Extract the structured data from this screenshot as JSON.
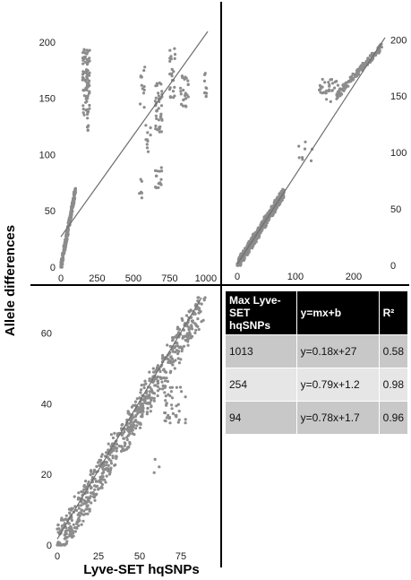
{
  "figure": {
    "ylabel": "Allele differences",
    "xlabel": "Lyve-SET hqSNPs"
  },
  "table": {
    "headers": [
      "Max Lyve-SET hqSNPs",
      "y=mx+b",
      "R²"
    ],
    "rows": [
      [
        "1013",
        "y=0.18x+27",
        "0.58"
      ],
      [
        "254",
        "y=0.79x+1.2",
        "0.98"
      ],
      [
        "94",
        "y=0.78x+1.7",
        "0.96"
      ]
    ]
  },
  "colors": {
    "points": "#8c8c8c",
    "line": "#6e6e6e",
    "divider": "#000000"
  },
  "chart_data": [
    {
      "type": "scatter",
      "panel": "top-left",
      "xlim": [
        0,
        1013
      ],
      "ylim": [
        0,
        215
      ],
      "xticks": [
        0,
        250,
        500,
        750,
        1000
      ],
      "yticks": [
        0,
        50,
        100,
        150,
        200
      ],
      "ytick_side": "left",
      "fit": {
        "slope": 0.18,
        "intercept": 27
      },
      "clusters": [
        {
          "x": [
            0,
            100
          ],
          "y": [
            0,
            68
          ],
          "n": 300,
          "mode": "diag"
        },
        {
          "x": [
            150,
            200
          ],
          "y": [
            135,
            195
          ],
          "n": 80,
          "mode": "box"
        },
        {
          "x": [
            180,
            190
          ],
          "y": [
            120,
            140
          ],
          "n": 8,
          "mode": "box"
        },
        {
          "x": [
            540,
            580
          ],
          "y": [
            140,
            180
          ],
          "n": 12,
          "mode": "box"
        },
        {
          "x": [
            580,
            620
          ],
          "y": [
            100,
            130
          ],
          "n": 10,
          "mode": "box"
        },
        {
          "x": [
            540,
            560
          ],
          "y": [
            60,
            80
          ],
          "n": 6,
          "mode": "box"
        },
        {
          "x": [
            650,
            700
          ],
          "y": [
            120,
            165
          ],
          "n": 40,
          "mode": "box"
        },
        {
          "x": [
            650,
            700
          ],
          "y": [
            70,
            90
          ],
          "n": 15,
          "mode": "box"
        },
        {
          "x": [
            750,
            790
          ],
          "y": [
            150,
            195
          ],
          "n": 25,
          "mode": "box"
        },
        {
          "x": [
            820,
            880
          ],
          "y": [
            140,
            170
          ],
          "n": 25,
          "mode": "box"
        },
        {
          "x": [
            990,
            1005
          ],
          "y": [
            150,
            175
          ],
          "n": 10,
          "mode": "box"
        }
      ]
    },
    {
      "type": "scatter",
      "panel": "top-right",
      "xlim": [
        0,
        254
      ],
      "ylim": [
        0,
        205
      ],
      "xticks": [
        0,
        100,
        200
      ],
      "yticks": [
        0,
        50,
        100,
        150,
        200
      ],
      "ytick_side": "right",
      "fit": {
        "slope": 0.79,
        "intercept": 1.2
      },
      "clusters": [
        {
          "x": [
            0,
            80
          ],
          "y": [
            0,
            65
          ],
          "n": 500,
          "mode": "diag"
        },
        {
          "x": [
            140,
            175
          ],
          "y": [
            145,
            165
          ],
          "n": 30,
          "mode": "box"
        },
        {
          "x": [
            170,
            250
          ],
          "y": [
            150,
            195
          ],
          "n": 150,
          "mode": "diag"
        },
        {
          "x": [
            100,
            130
          ],
          "y": [
            90,
            110
          ],
          "n": 8,
          "mode": "box"
        }
      ]
    },
    {
      "type": "scatter",
      "panel": "bottom-left",
      "xlim": [
        0,
        94
      ],
      "ylim": [
        0,
        70
      ],
      "xticks": [
        0,
        25,
        50,
        75
      ],
      "yticks": [
        0,
        20,
        40,
        60
      ],
      "ytick_side": "left",
      "fit": {
        "slope": 0.78,
        "intercept": 1.7
      },
      "clusters": [
        {
          "x": [
            0,
            88
          ],
          "y": [
            0,
            68
          ],
          "n": 700,
          "mode": "diag"
        },
        {
          "x": [
            65,
            78
          ],
          "y": [
            34,
            45
          ],
          "n": 40,
          "mode": "box"
        },
        {
          "x": [
            58,
            62
          ],
          "y": [
            20,
            25
          ],
          "n": 3,
          "mode": "box"
        }
      ]
    }
  ]
}
